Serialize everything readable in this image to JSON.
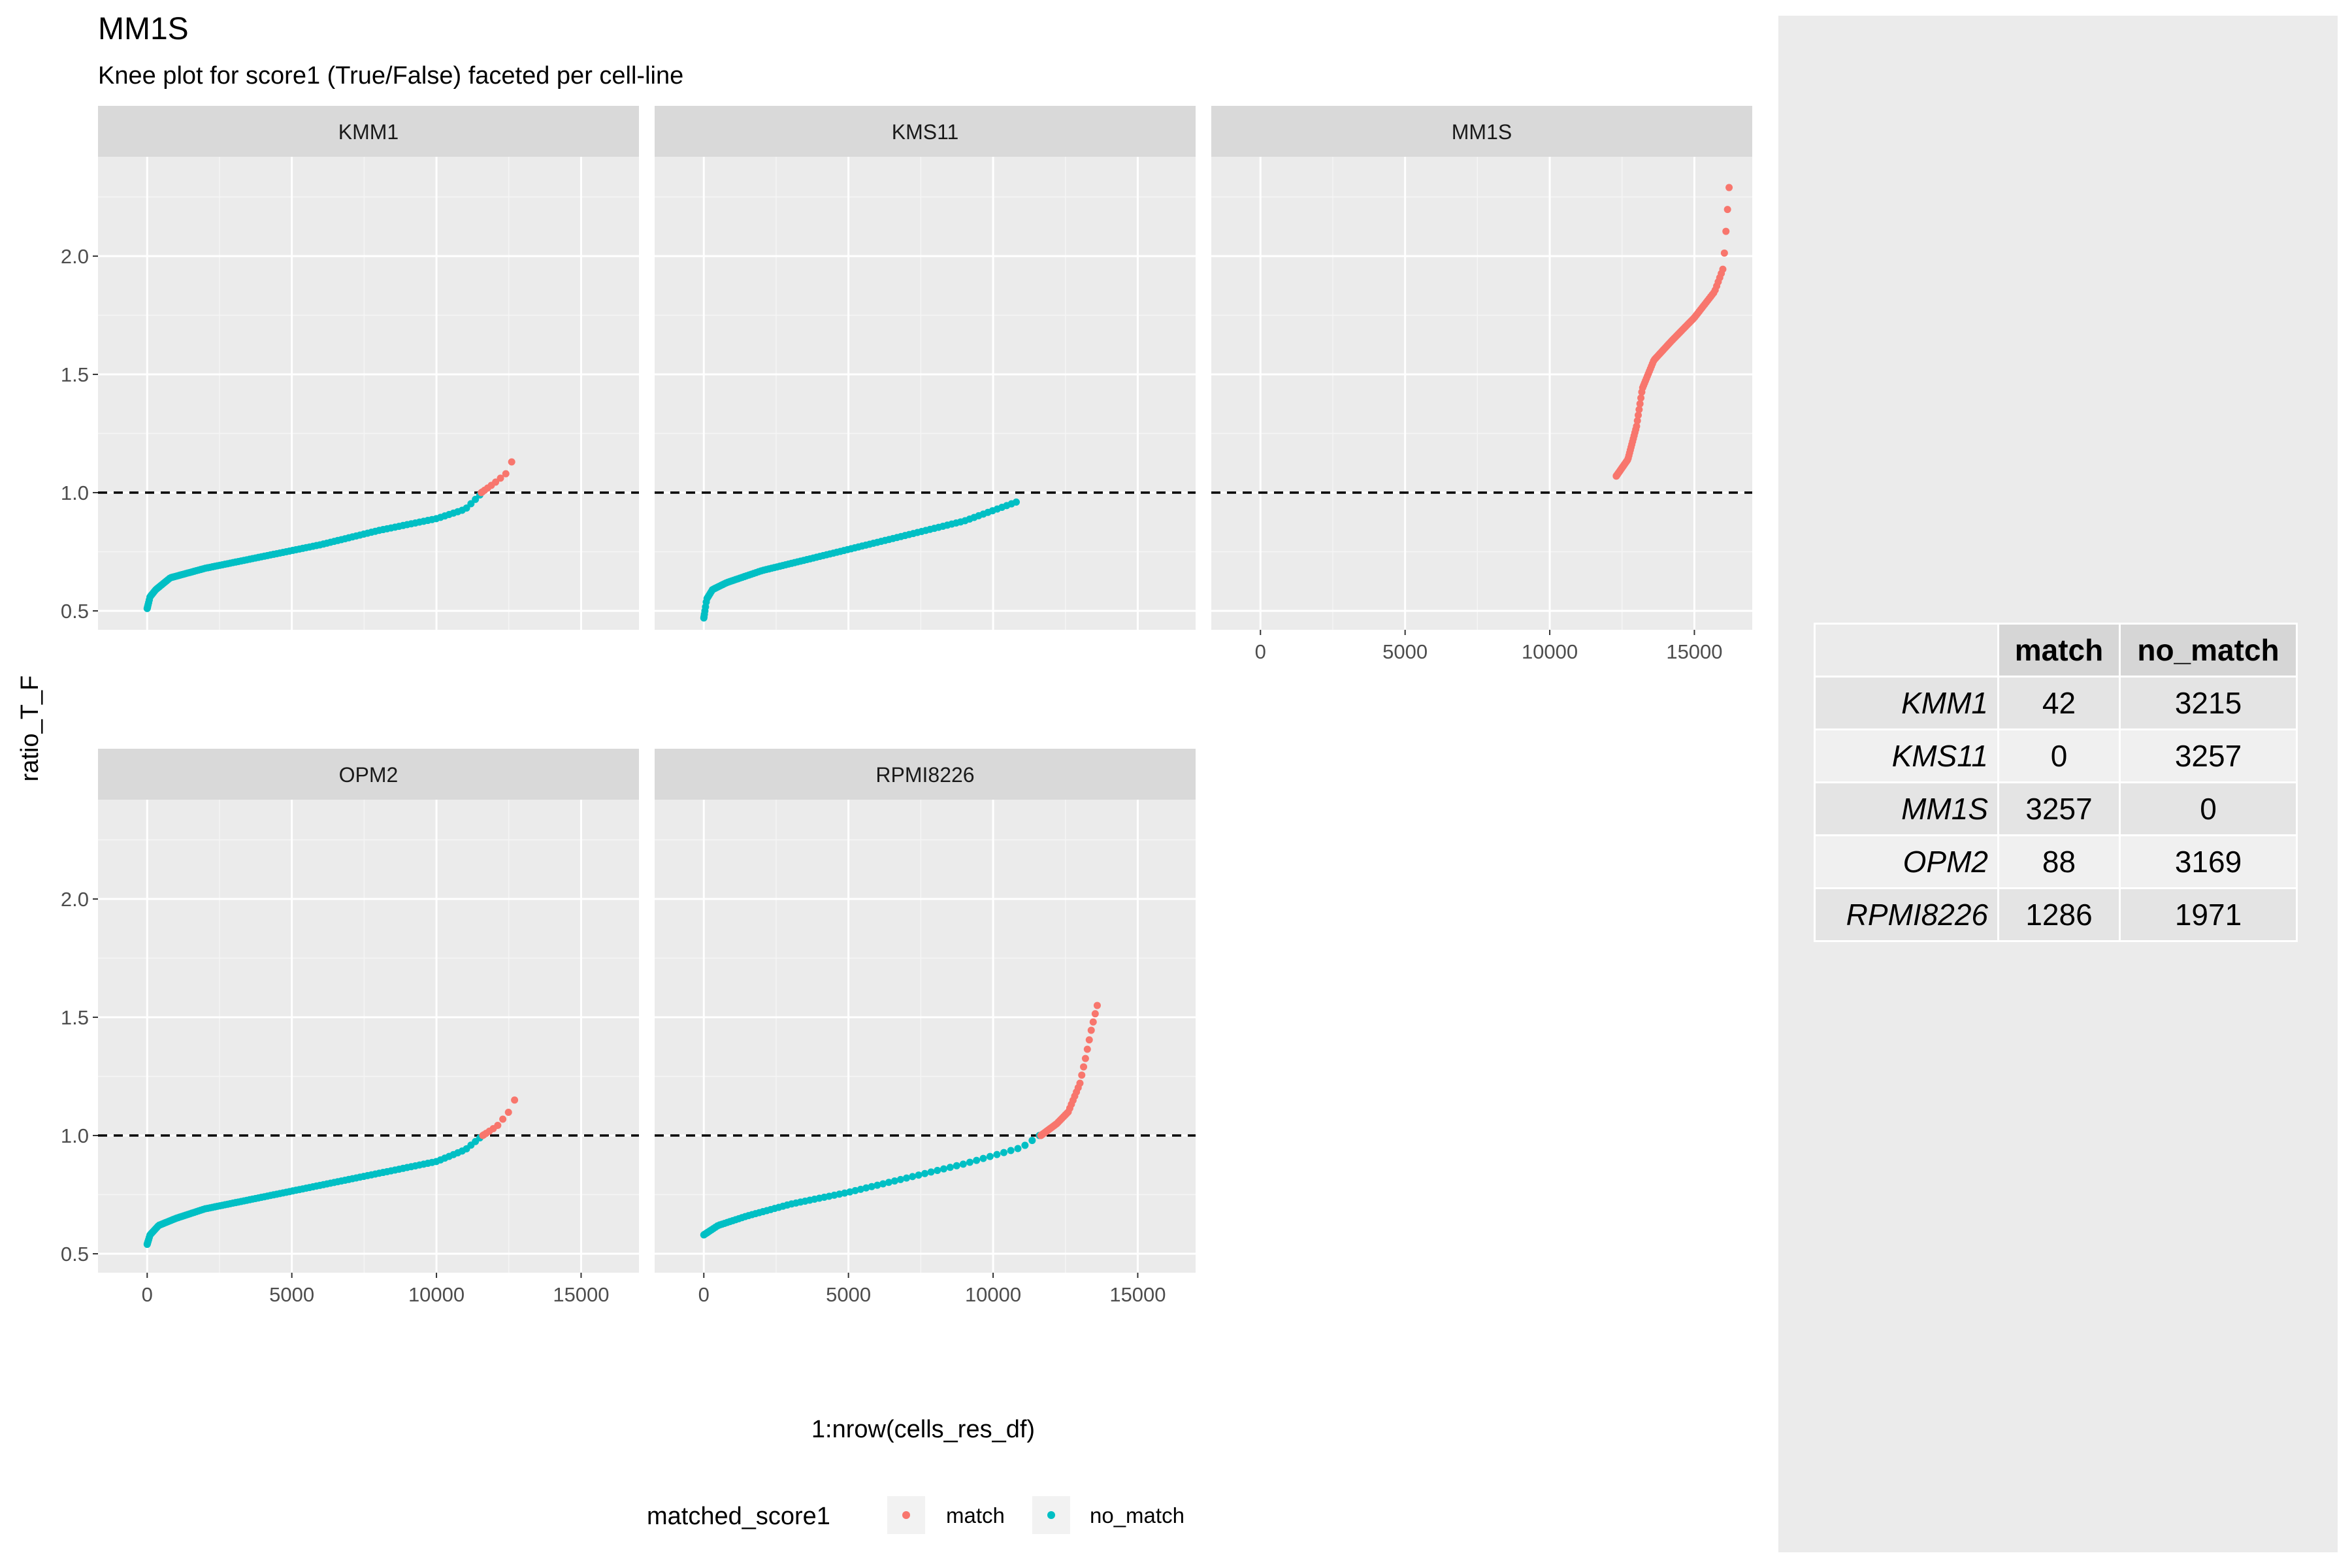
{
  "chart_data": {
    "type": "scatter",
    "title": "MM1S",
    "subtitle": "Knee plot for score1 (True/False) faceted per cell-line",
    "xlabel": "1:nrow(cells_res_df)",
    "ylabel": "ratio_T_F",
    "xlim": [
      -1700,
      17000
    ],
    "ylim": [
      0.42,
      2.42
    ],
    "x_ticks": [
      0,
      5000,
      10000,
      15000
    ],
    "x_tick_labels": [
      "0",
      "5000",
      "10000",
      "15000"
    ],
    "y_ticks": [
      0.5,
      1.0,
      1.5,
      2.0
    ],
    "y_tick_labels": [
      "0.5",
      "1.0",
      "1.5",
      "2.0"
    ],
    "reference_line": {
      "y": 1.0,
      "style": "dashed"
    },
    "grid": true,
    "legend": {
      "title": "matched_score1",
      "position": "bottom",
      "entries": [
        {
          "label": "match",
          "color": "#F8766D"
        },
        {
          "label": "no_match",
          "color": "#00BFC4"
        }
      ]
    },
    "facets": [
      {
        "name": "KMM1",
        "curves": [
          {
            "series": "no_match",
            "x_start": 0,
            "x_end": 11500,
            "knots": [
              [
                0,
                0.51
              ],
              [
                100,
                0.56
              ],
              [
                300,
                0.59
              ],
              [
                800,
                0.64
              ],
              [
                2000,
                0.68
              ],
              [
                4000,
                0.73
              ],
              [
                6000,
                0.78
              ],
              [
                8000,
                0.84
              ],
              [
                10000,
                0.89
              ],
              [
                11000,
                0.93
              ],
              [
                11500,
                0.99
              ]
            ],
            "n": 120
          },
          {
            "series": "match",
            "x_start": 11550,
            "x_end": 12600,
            "knots": [
              [
                11550,
                1.0
              ],
              [
                12000,
                1.04
              ],
              [
                12400,
                1.08
              ],
              [
                12600,
                1.13
              ]
            ],
            "n": 9
          }
        ]
      },
      {
        "name": "KMS11",
        "curves": [
          {
            "series": "no_match",
            "x_start": 0,
            "x_end": 10800,
            "knots": [
              [
                0,
                0.47
              ],
              [
                100,
                0.55
              ],
              [
                300,
                0.59
              ],
              [
                800,
                0.62
              ],
              [
                2000,
                0.67
              ],
              [
                3000,
                0.7
              ],
              [
                5000,
                0.76
              ],
              [
                7000,
                0.82
              ],
              [
                9000,
                0.88
              ],
              [
                10800,
                0.96
              ]
            ],
            "n": 105
          },
          {
            "series": "match",
            "x_start": 0,
            "x_end": 0,
            "knots": [],
            "n": 0
          }
        ]
      },
      {
        "name": "MM1S",
        "curves": [
          {
            "series": "match",
            "x_start": 12300,
            "x_end": 16200,
            "knots": [
              [
                12300,
                1.07
              ],
              [
                12700,
                1.14
              ],
              [
                13000,
                1.28
              ],
              [
                13200,
                1.44
              ],
              [
                13600,
                1.56
              ],
              [
                14200,
                1.64
              ],
              [
                15000,
                1.74
              ],
              [
                15700,
                1.85
              ],
              [
                16000,
                1.95
              ],
              [
                16200,
                2.29
              ]
            ],
            "n": 115
          }
        ]
      },
      {
        "name": "OPM2",
        "curves": [
          {
            "series": "no_match",
            "x_start": 0,
            "x_end": 11500,
            "knots": [
              [
                0,
                0.54
              ],
              [
                100,
                0.58
              ],
              [
                400,
                0.62
              ],
              [
                1000,
                0.65
              ],
              [
                2000,
                0.69
              ],
              [
                4000,
                0.74
              ],
              [
                6000,
                0.79
              ],
              [
                8000,
                0.84
              ],
              [
                10000,
                0.89
              ],
              [
                11000,
                0.94
              ],
              [
                11500,
                0.99
              ]
            ],
            "n": 120
          },
          {
            "series": "match",
            "x_start": 11600,
            "x_end": 12700,
            "knots": [
              [
                11600,
                1.0
              ],
              [
                12100,
                1.04
              ],
              [
                12500,
                1.1
              ],
              [
                12700,
                1.15
              ]
            ],
            "n": 9
          }
        ]
      },
      {
        "name": "RPMI8226",
        "curves": [
          {
            "series": "no_match",
            "x_start": 0,
            "x_end": 11600,
            "knots": [
              [
                0,
                0.58
              ],
              [
                500,
                0.62
              ],
              [
                1500,
                0.66
              ],
              [
                3000,
                0.71
              ],
              [
                5000,
                0.76
              ],
              [
                7000,
                0.82
              ],
              [
                9000,
                0.88
              ],
              [
                11000,
                0.95
              ],
              [
                11600,
                1.0
              ]
            ],
            "n": 75
          },
          {
            "series": "match",
            "x_start": 11650,
            "x_end": 13600,
            "knots": [
              [
                11650,
                1.0
              ],
              [
                12200,
                1.05
              ],
              [
                12600,
                1.1
              ],
              [
                13000,
                1.22
              ],
              [
                13200,
                1.33
              ],
              [
                13400,
                1.45
              ],
              [
                13600,
                1.55
              ]
            ],
            "n": 45
          }
        ]
      }
    ]
  },
  "table": {
    "headers": [
      "",
      "match",
      "no_match"
    ],
    "rows": [
      {
        "name": "KMM1",
        "match": "42",
        "no_match": "3215"
      },
      {
        "name": "KMS11",
        "match": "0",
        "no_match": "3257"
      },
      {
        "name": "MM1S",
        "match": "3257",
        "no_match": "0"
      },
      {
        "name": "OPM2",
        "match": "88",
        "no_match": "3169"
      },
      {
        "name": "RPMI8226",
        "match": "1286",
        "no_match": "1971"
      }
    ]
  }
}
